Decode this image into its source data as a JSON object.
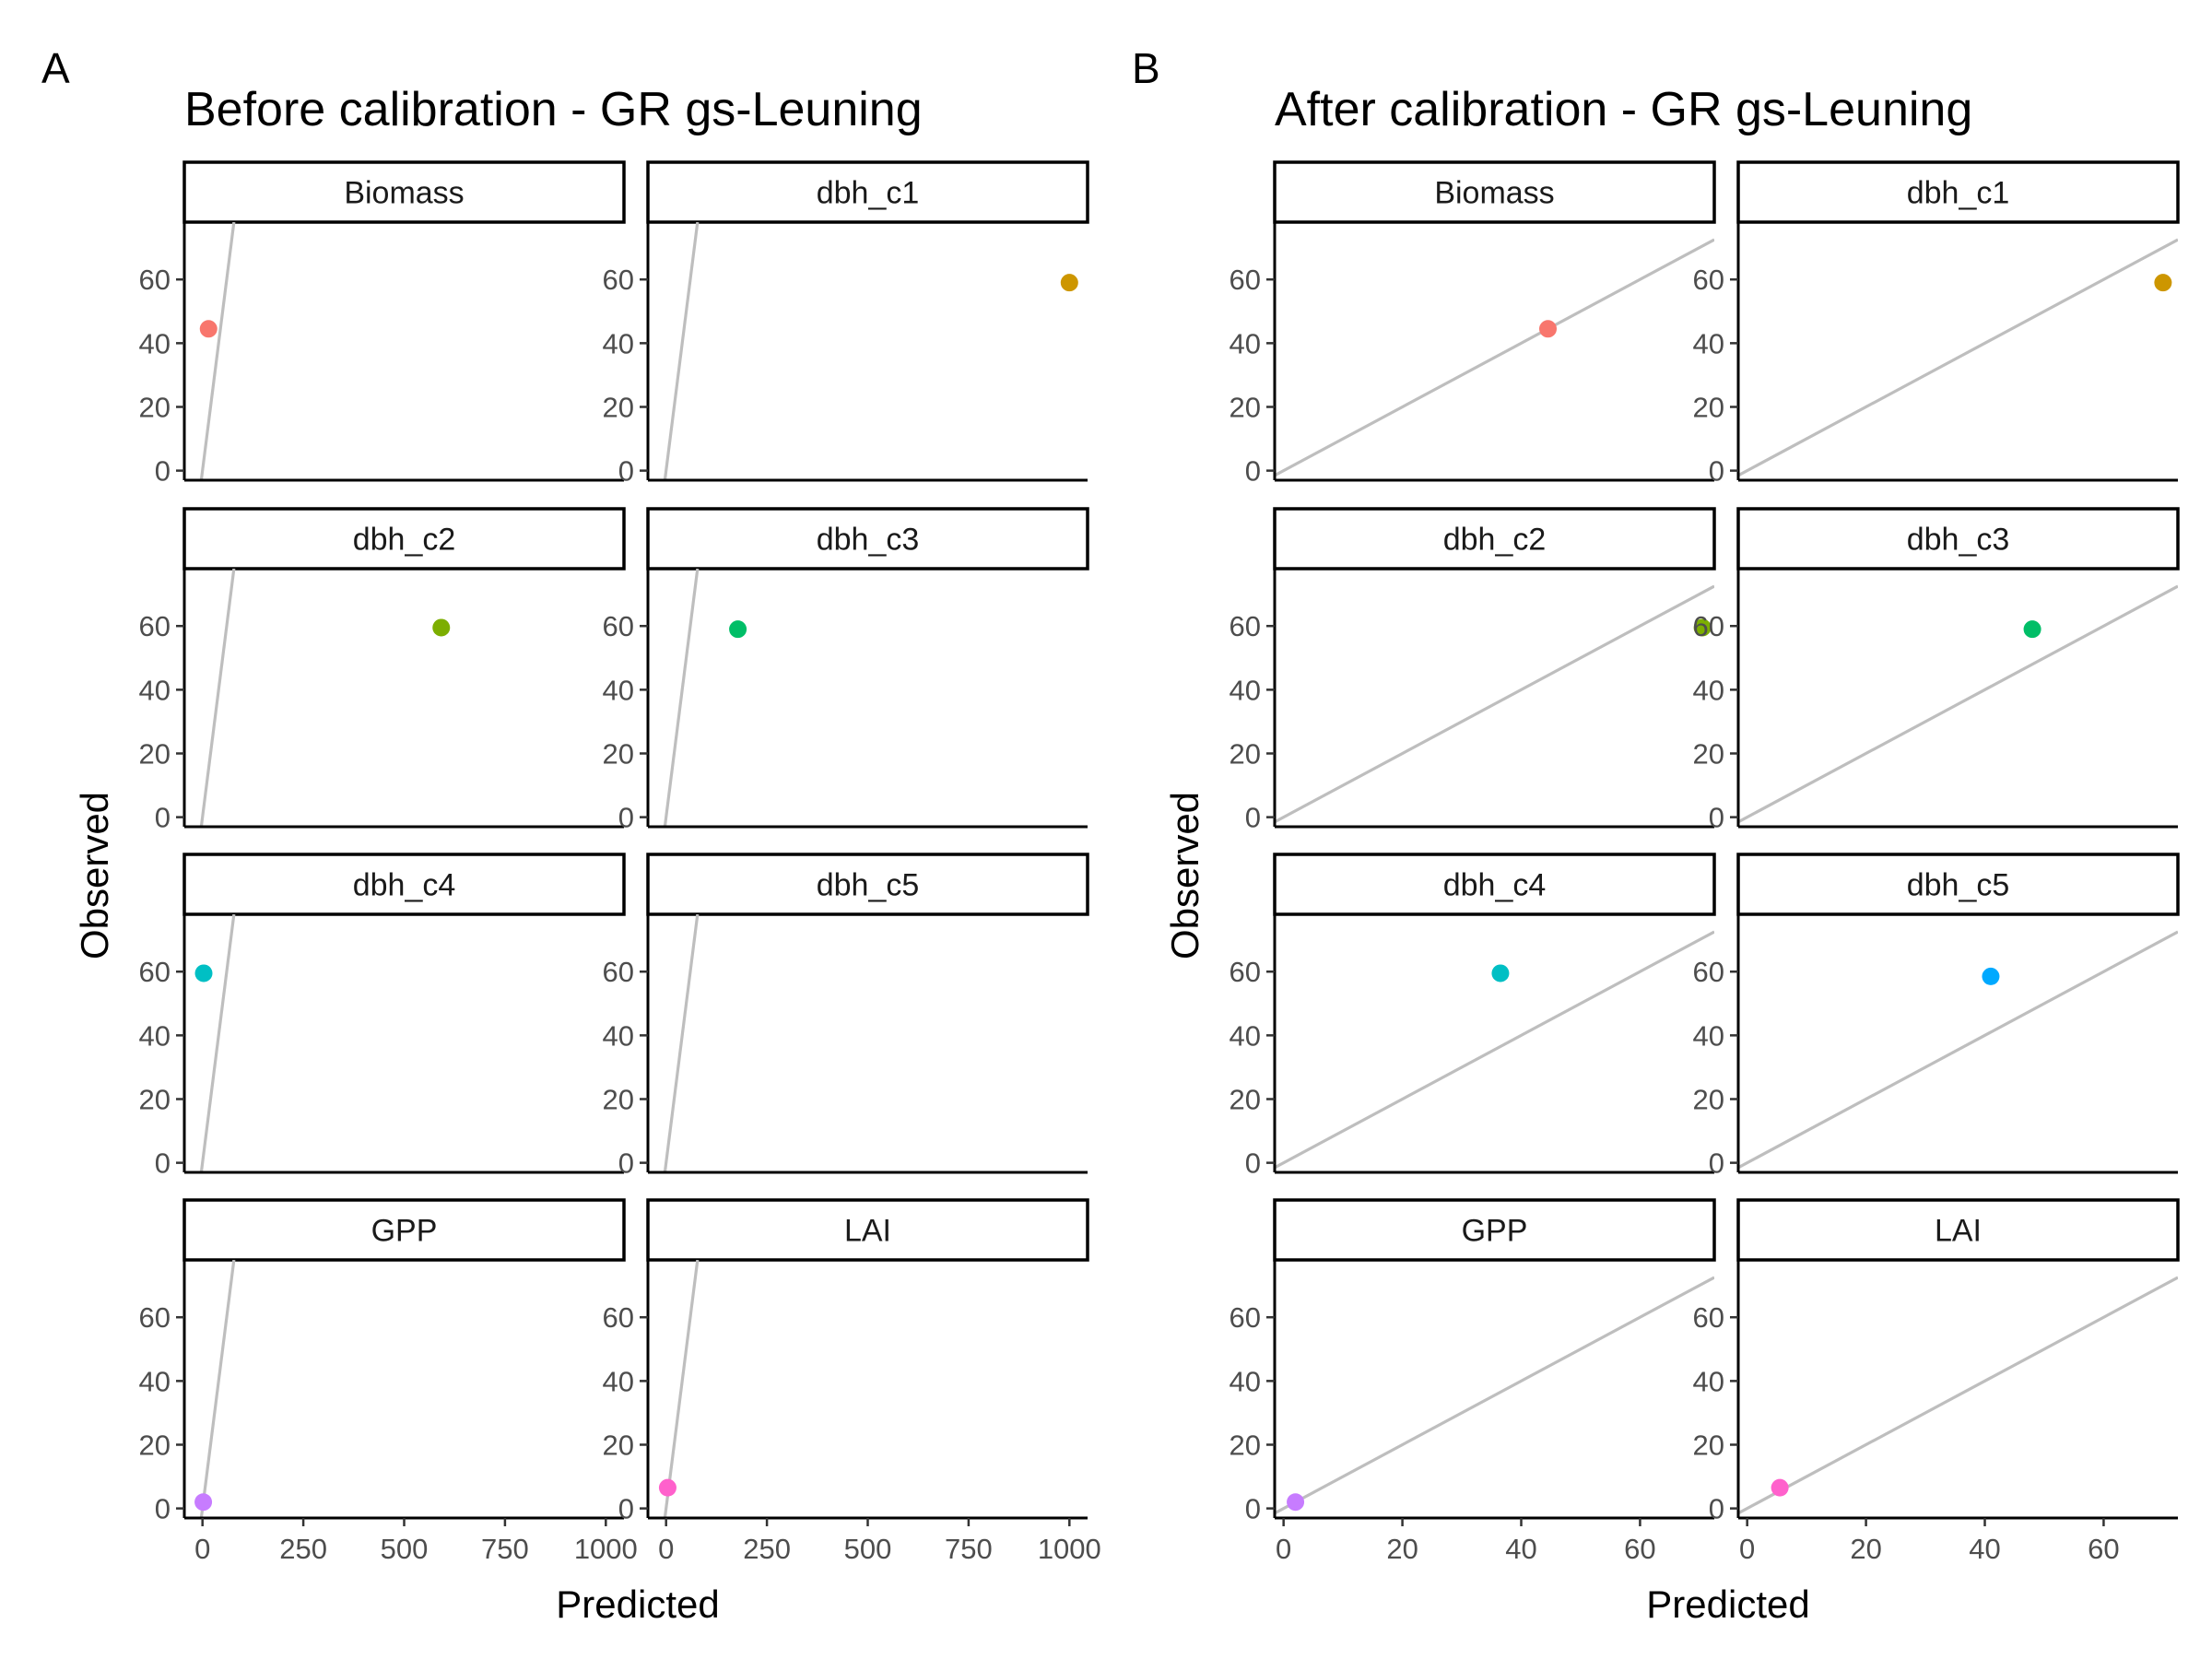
{
  "figure": {
    "facets": [
      "Biomass",
      "dbh_c1",
      "dbh_c2",
      "dbh_c3",
      "dbh_c4",
      "dbh_c5",
      "GPP",
      "LAI"
    ],
    "colors": {
      "Biomass": "#F8766D",
      "dbh_c1": "#CD9600",
      "dbh_c2": "#7CAE00",
      "dbh_c3": "#00BE67",
      "dbh_c4": "#00BFC4",
      "dbh_c5": "#00A9FF",
      "GPP": "#C77CFF",
      "LAI": "#FF61CC"
    },
    "reference_line_color": "#bebebe"
  },
  "chart_data": [
    {
      "type": "scatter",
      "panel_letter": "A",
      "title": "Before calibration - GR gs-Leuning",
      "xlabel": "Predicted",
      "ylabel": "Observed",
      "reference_line": "y = x",
      "xlim": [
        -45,
        1045
      ],
      "ylim": [
        -3,
        78
      ],
      "x_ticks": [
        0,
        250,
        500,
        750,
        1000
      ],
      "x_tick_labels": [
        "0",
        "250",
        "500",
        "750",
        "1000"
      ],
      "y_ticks": [
        0,
        20,
        40,
        60
      ],
      "y_tick_labels": [
        "0",
        "20",
        "40",
        "60"
      ],
      "layout": "4 rows x 2 columns of facets",
      "series": [
        {
          "facet": "Biomass",
          "x": 15,
          "y": 44.5
        },
        {
          "facet": "dbh_c1",
          "x": 1000,
          "y": 59
        },
        {
          "facet": "dbh_c2",
          "x": 592,
          "y": 59.5
        },
        {
          "facet": "dbh_c3",
          "x": 178,
          "y": 59
        },
        {
          "facet": "dbh_c4",
          "x": 3,
          "y": 59.5
        },
        {
          "facet": "dbh_c5",
          "x": null,
          "y": null
        },
        {
          "facet": "GPP",
          "x": 2,
          "y": 2
        },
        {
          "facet": "LAI",
          "x": 4,
          "y": 6.5
        }
      ]
    },
    {
      "type": "scatter",
      "panel_letter": "B",
      "title": "After calibration - GR gs-Leuning",
      "xlabel": "Predicted",
      "ylabel": "Observed",
      "reference_line": "y = x",
      "xlim": [
        -1.5,
        72.5
      ],
      "ylim": [
        -3,
        78
      ],
      "x_ticks": [
        0,
        20,
        40,
        60
      ],
      "x_tick_labels": [
        "0",
        "20",
        "40",
        "60"
      ],
      "y_ticks": [
        0,
        20,
        40,
        60
      ],
      "y_tick_labels": [
        "0",
        "20",
        "40",
        "60"
      ],
      "layout": "4 rows x 2 columns of facets",
      "series": [
        {
          "facet": "Biomass",
          "x": 44.5,
          "y": 44.5
        },
        {
          "facet": "dbh_c1",
          "x": 70,
          "y": 59
        },
        {
          "facet": "dbh_c2",
          "x": 70.5,
          "y": 59.5
        },
        {
          "facet": "dbh_c3",
          "x": 48,
          "y": 59
        },
        {
          "facet": "dbh_c4",
          "x": 36.5,
          "y": 59.5
        },
        {
          "facet": "dbh_c5",
          "x": 41,
          "y": 58.5
        },
        {
          "facet": "GPP",
          "x": 2,
          "y": 2
        },
        {
          "facet": "LAI",
          "x": 5.5,
          "y": 6.5
        }
      ]
    }
  ]
}
